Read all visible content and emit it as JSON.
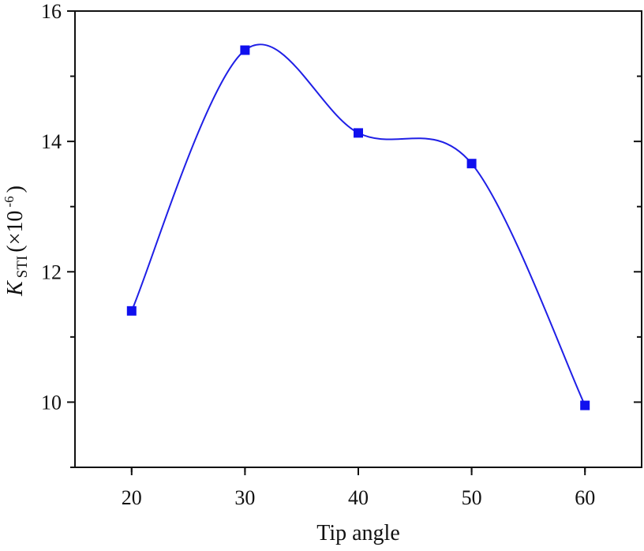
{
  "chart_data": {
    "type": "line",
    "title": "",
    "xlabel": "Tip angle",
    "ylabel": {
      "symbol": "K",
      "subscript": "STI",
      "unit_prefix": " (×10",
      "unit_exponent": "-6",
      "unit_suffix": ")"
    },
    "x": [
      20,
      30,
      40,
      50,
      60
    ],
    "series": [
      {
        "values": [
          11.4,
          15.4,
          14.13,
          13.66,
          9.95
        ]
      }
    ],
    "xlim": [
      15,
      65
    ],
    "ylim": [
      9.0,
      16.0
    ],
    "xticks": [
      20,
      30,
      40,
      50,
      60
    ],
    "yticks": [
      10,
      12,
      14,
      16
    ],
    "grid": false,
    "smooth_line": true,
    "marker": "square",
    "line_color": "#1f1fe6",
    "marker_color": "#1010ee",
    "axis_color": "#111111"
  }
}
